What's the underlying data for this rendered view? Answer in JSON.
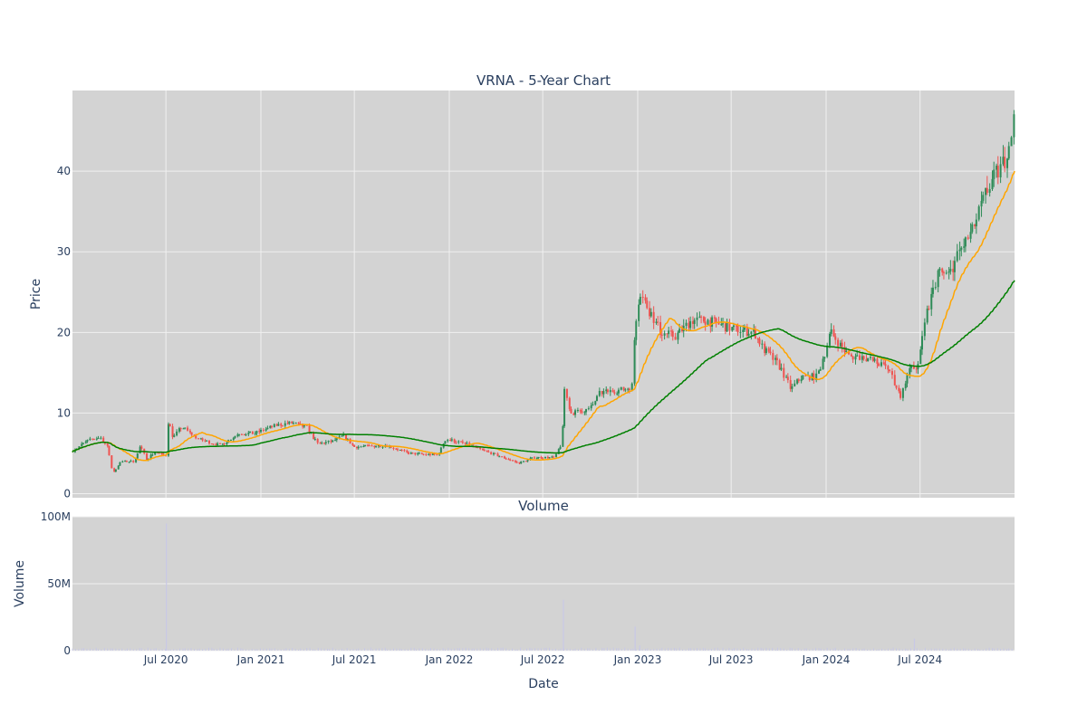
{
  "chart_data": [
    {
      "type": "candlestick",
      "title": "VRNA - 5-Year Chart",
      "ylabel": "Price",
      "ylim": [
        -0.5,
        50
      ],
      "yticks": [
        0,
        10,
        20,
        30,
        40
      ],
      "grid": true,
      "legend": "none",
      "colors": {
        "plot_bg": "#d3d3d3",
        "grid": "#f0f0f0",
        "increasing": "#2e8b57",
        "decreasing": "#ef5350",
        "ma_short": "#ffa500",
        "ma_long": "#008000"
      },
      "anchors": [
        [
          "2020-01-02",
          5.3
        ],
        [
          "2020-02-01",
          6.6
        ],
        [
          "2020-02-25",
          7.0
        ],
        [
          "2020-03-10",
          5.8
        ],
        [
          "2020-03-20",
          2.5
        ],
        [
          "2020-04-05",
          4.0
        ],
        [
          "2020-05-01",
          4.0
        ],
        [
          "2020-05-12",
          5.8
        ],
        [
          "2020-05-25",
          4.3
        ],
        [
          "2020-06-10",
          5.2
        ],
        [
          "2020-06-25",
          4.8
        ],
        [
          "2020-07-01",
          4.8
        ],
        [
          "2020-07-03",
          9.5
        ],
        [
          "2020-07-15",
          7.0
        ],
        [
          "2020-08-01",
          8.3
        ],
        [
          "2020-09-01",
          6.8
        ],
        [
          "2020-10-15",
          6.0
        ],
        [
          "2020-11-20",
          7.5
        ],
        [
          "2020-12-20",
          7.5
        ],
        [
          "2021-02-01",
          8.5
        ],
        [
          "2021-03-01",
          8.8
        ],
        [
          "2021-04-01",
          8.2
        ],
        [
          "2021-04-20",
          6.2
        ],
        [
          "2021-05-20",
          6.5
        ],
        [
          "2021-06-10",
          7.2
        ],
        [
          "2021-07-01",
          5.8
        ],
        [
          "2021-09-01",
          6.0
        ],
        [
          "2021-10-15",
          5.0
        ],
        [
          "2021-12-10",
          4.8
        ],
        [
          "2021-12-25",
          6.8
        ],
        [
          "2022-02-01",
          6.2
        ],
        [
          "2022-03-01",
          5.5
        ],
        [
          "2022-04-15",
          4.5
        ],
        [
          "2022-05-15",
          3.8
        ],
        [
          "2022-06-15",
          4.5
        ],
        [
          "2022-07-25",
          4.5
        ],
        [
          "2022-08-08",
          6.5
        ],
        [
          "2022-08-12",
          13.0
        ],
        [
          "2022-08-25",
          10.0
        ],
        [
          "2022-10-01",
          10.5
        ],
        [
          "2022-10-20",
          12.5
        ],
        [
          "2022-12-10",
          13.0
        ],
        [
          "2022-12-23",
          13.5
        ],
        [
          "2022-12-27",
          21.0
        ],
        [
          "2023-01-05",
          25.0
        ],
        [
          "2023-02-15",
          20.0
        ],
        [
          "2023-03-15",
          19.5
        ],
        [
          "2023-04-15",
          21.5
        ],
        [
          "2023-05-15",
          21.5
        ],
        [
          "2023-07-01",
          20.5
        ],
        [
          "2023-08-15",
          20.0
        ],
        [
          "2023-09-01",
          18.0
        ],
        [
          "2023-10-01",
          16.0
        ],
        [
          "2023-10-25",
          13.0
        ],
        [
          "2023-11-15",
          14.5
        ],
        [
          "2023-12-15",
          14.5
        ],
        [
          "2024-01-10",
          20.0
        ],
        [
          "2024-02-15",
          17.0
        ],
        [
          "2024-03-15",
          17.0
        ],
        [
          "2024-05-01",
          15.5
        ],
        [
          "2024-05-25",
          12.0
        ],
        [
          "2024-06-10",
          15.5
        ],
        [
          "2024-06-25",
          15.5
        ],
        [
          "2024-07-15",
          22.5
        ],
        [
          "2024-08-05",
          27.5
        ],
        [
          "2024-08-25",
          27.0
        ],
        [
          "2024-09-15",
          30.0
        ],
        [
          "2024-10-10",
          32.5
        ],
        [
          "2024-11-10",
          38.0
        ],
        [
          "2024-12-10",
          41.0
        ],
        [
          "2024-12-31",
          46.5
        ]
      ],
      "volume_spikes": [
        [
          "2020-07-02",
          95000000
        ],
        [
          "2022-08-10",
          38000000
        ],
        [
          "2022-12-27",
          18000000
        ],
        [
          "2024-06-20",
          9000000
        ],
        [
          "2023-01-05",
          4000000
        ]
      ]
    },
    {
      "type": "bar",
      "title": "Volume",
      "xlabel": "Date",
      "ylabel": "Volume",
      "ylim": [
        0,
        100000000
      ],
      "yticks": [
        "0",
        "50M",
        "100M"
      ],
      "xticks": [
        "Jul 2020",
        "Jan 2021",
        "Jul 2021",
        "Jan 2022",
        "Jul 2022",
        "Jan 2023",
        "Jul 2023",
        "Jan 2024",
        "Jul 2024"
      ],
      "xtick_dates": [
        "2020-07-01",
        "2021-01-01",
        "2021-07-01",
        "2022-01-01",
        "2022-07-01",
        "2023-01-01",
        "2023-07-01",
        "2024-01-01",
        "2024-07-01"
      ],
      "xlim": [
        "2020-01-02",
        "2024-12-31"
      ],
      "grid": true,
      "legend": "none"
    }
  ]
}
